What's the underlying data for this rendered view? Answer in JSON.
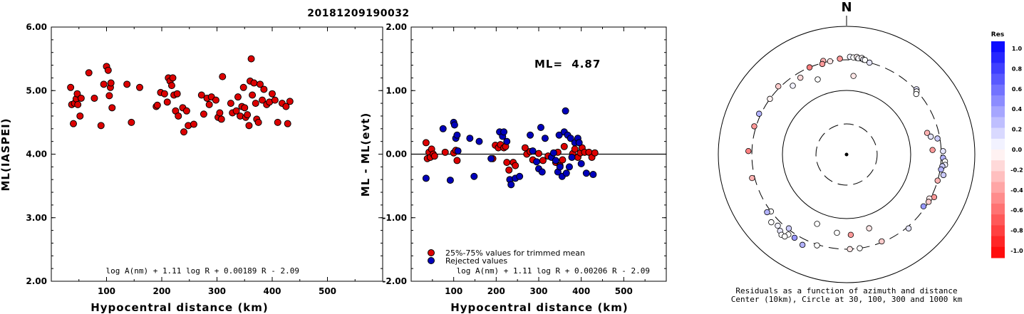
{
  "title": "20181209190032",
  "chart_data": [
    {
      "type": "scatter",
      "ylabel": "ML(IASPEI)",
      "xlabel": "Hypocentral distance (km)",
      "xlim": [
        0,
        600
      ],
      "ylim": [
        2.0,
        6.0
      ],
      "xticks": [
        "100",
        "200",
        "300",
        "400",
        "500"
      ],
      "yticks": [
        "2.00",
        "3.00",
        "4.00",
        "5.00",
        "6.00"
      ],
      "formula": "log A(nm) + 1.11 log R + 0.00189 R - 2.09",
      "point_color": "#dd0000",
      "points": [
        [
          35,
          5.05
        ],
        [
          37,
          4.78
        ],
        [
          40,
          4.48
        ],
        [
          42,
          4.8
        ],
        [
          45,
          4.87
        ],
        [
          47,
          4.95
        ],
        [
          48,
          4.78
        ],
        [
          52,
          4.6
        ],
        [
          54,
          4.88
        ],
        [
          68,
          5.28
        ],
        [
          78,
          4.88
        ],
        [
          90,
          4.45
        ],
        [
          95,
          5.1
        ],
        [
          100,
          5.38
        ],
        [
          103,
          5.32
        ],
        [
          105,
          4.92
        ],
        [
          107,
          5.05
        ],
        [
          108,
          5.12
        ],
        [
          110,
          4.73
        ],
        [
          137,
          5.1
        ],
        [
          145,
          4.5
        ],
        [
          160,
          5.05
        ],
        [
          190,
          4.75
        ],
        [
          192,
          4.77
        ],
        [
          198,
          4.97
        ],
        [
          205,
          4.95
        ],
        [
          210,
          4.82
        ],
        [
          212,
          5.2
        ],
        [
          215,
          5.15
        ],
        [
          218,
          5.08
        ],
        [
          220,
          5.2
        ],
        [
          222,
          4.93
        ],
        [
          225,
          4.68
        ],
        [
          228,
          4.95
        ],
        [
          230,
          4.6
        ],
        [
          238,
          4.73
        ],
        [
          240,
          4.35
        ],
        [
          245,
          4.68
        ],
        [
          248,
          4.45
        ],
        [
          258,
          4.47
        ],
        [
          272,
          4.93
        ],
        [
          276,
          4.63
        ],
        [
          282,
          4.88
        ],
        [
          286,
          4.78
        ],
        [
          290,
          4.9
        ],
        [
          298,
          4.85
        ],
        [
          302,
          4.58
        ],
        [
          305,
          4.65
        ],
        [
          308,
          4.55
        ],
        [
          310,
          5.22
        ],
        [
          325,
          4.8
        ],
        [
          328,
          4.65
        ],
        [
          335,
          4.68
        ],
        [
          338,
          4.9
        ],
        [
          342,
          4.6
        ],
        [
          345,
          4.75
        ],
        [
          348,
          5.05
        ],
        [
          350,
          4.73
        ],
        [
          352,
          4.58
        ],
        [
          355,
          4.62
        ],
        [
          358,
          4.45
        ],
        [
          360,
          5.15
        ],
        [
          362,
          5.5
        ],
        [
          364,
          4.93
        ],
        [
          367,
          5.12
        ],
        [
          370,
          4.8
        ],
        [
          372,
          4.55
        ],
        [
          375,
          4.5
        ],
        [
          378,
          5.1
        ],
        [
          382,
          4.85
        ],
        [
          385,
          5.02
        ],
        [
          390,
          4.78
        ],
        [
          395,
          4.82
        ],
        [
          400,
          4.95
        ],
        [
          405,
          4.85
        ],
        [
          410,
          4.5
        ],
        [
          418,
          4.8
        ],
        [
          425,
          4.75
        ],
        [
          428,
          4.48
        ],
        [
          432,
          4.83
        ]
      ]
    },
    {
      "type": "scatter",
      "ylabel": "ML - ML(evt)",
      "xlabel": "Hypocentral distance (km)",
      "xlim": [
        0,
        600
      ],
      "ylim": [
        -2.0,
        2.0
      ],
      "xticks": [
        "100",
        "200",
        "300",
        "400",
        "500"
      ],
      "yticks": [
        "-2.00",
        "-1.00",
        "0.00",
        "1.00",
        "2.00"
      ],
      "formula": "log A(nm) + 1.11 log R + 0.00206 R - 2.09",
      "ml_label": "ML=",
      "ml_value": "4.87",
      "legend": [
        {
          "label": "25%-75% values for trimmed mean",
          "color": "#dd0000"
        },
        {
          "label": "Rejected values",
          "color": "#0000bb"
        }
      ],
      "series": [
        {
          "name": "25%-75% values for trimmed mean",
          "color": "#dd0000",
          "points": [
            [
              35,
              0.18
            ],
            [
              38,
              -0.07
            ],
            [
              42,
              0.03
            ],
            [
              45,
              -0.05
            ],
            [
              48,
              0.08
            ],
            [
              52,
              0.0
            ],
            [
              55,
              -0.03
            ],
            [
              80,
              0.03
            ],
            [
              100,
              0.02
            ],
            [
              105,
              0.06
            ],
            [
              108,
              -0.1
            ],
            [
              192,
              -0.07
            ],
            [
              198,
              0.14
            ],
            [
              205,
              0.1
            ],
            [
              210,
              0.15
            ],
            [
              218,
              0.1
            ],
            [
              222,
              0.12
            ],
            [
              225,
              -0.13
            ],
            [
              230,
              -0.25
            ],
            [
              240,
              -0.13
            ],
            [
              245,
              -0.18
            ],
            [
              268,
              0.1
            ],
            [
              272,
              0.0
            ],
            [
              280,
              0.04
            ],
            [
              286,
              -0.09
            ],
            [
              300,
              0.01
            ],
            [
              310,
              -0.1
            ],
            [
              322,
              -0.03
            ],
            [
              340,
              -0.13
            ],
            [
              345,
              0.03
            ],
            [
              350,
              -0.18
            ],
            [
              356,
              -0.09
            ],
            [
              360,
              0.12
            ],
            [
              380,
              0.01
            ],
            [
              385,
              0.08
            ],
            [
              392,
              -0.05
            ],
            [
              398,
              0.02
            ],
            [
              402,
              0.1
            ],
            [
              408,
              0.03
            ],
            [
              418,
              0.03
            ],
            [
              425,
              -0.05
            ],
            [
              432,
              0.02
            ]
          ]
        },
        {
          "name": "Rejected values",
          "color": "#0000bb",
          "points": [
            [
              35,
              -0.38
            ],
            [
              75,
              0.4
            ],
            [
              92,
              -0.41
            ],
            [
              100,
              0.5
            ],
            [
              102,
              0.46
            ],
            [
              105,
              0.25
            ],
            [
              108,
              0.3
            ],
            [
              110,
              0.05
            ],
            [
              138,
              0.25
            ],
            [
              148,
              -0.35
            ],
            [
              160,
              0.2
            ],
            [
              188,
              -0.07
            ],
            [
              208,
              0.35
            ],
            [
              215,
              0.28
            ],
            [
              218,
              0.35
            ],
            [
              225,
              0.2
            ],
            [
              232,
              -0.4
            ],
            [
              235,
              -0.48
            ],
            [
              245,
              -0.38
            ],
            [
              255,
              -0.35
            ],
            [
              280,
              0.3
            ],
            [
              286,
              0.05
            ],
            [
              295,
              -0.12
            ],
            [
              300,
              -0.23
            ],
            [
              305,
              0.42
            ],
            [
              308,
              -0.28
            ],
            [
              315,
              0.25
            ],
            [
              330,
              -0.05
            ],
            [
              335,
              0.02
            ],
            [
              340,
              -0.1
            ],
            [
              345,
              -0.28
            ],
            [
              348,
              0.3
            ],
            [
              350,
              -0.2
            ],
            [
              355,
              -0.35
            ],
            [
              360,
              0.35
            ],
            [
              363,
              0.68
            ],
            [
              365,
              -0.3
            ],
            [
              368,
              0.3
            ],
            [
              372,
              -0.2
            ],
            [
              375,
              0.25
            ],
            [
              378,
              -0.05
            ],
            [
              385,
              0.18
            ],
            [
              392,
              0.25
            ],
            [
              395,
              0.18
            ],
            [
              400,
              -0.15
            ],
            [
              412,
              -0.3
            ],
            [
              428,
              -0.32
            ]
          ]
        }
      ]
    },
    {
      "type": "scatter",
      "subtype": "polar",
      "north_label": "N",
      "caption_line1": "Residuals as a function of azimuth and distance",
      "caption_line2": "Center (10km), Circle at 30, 100, 300 and 1000 km",
      "rings_km": [
        30,
        100,
        300,
        1000
      ],
      "colorbar": {
        "title": "Res",
        "ticks": [
          "1.0",
          "0.8",
          "0.6",
          "0.4",
          "0.2",
          "0.0",
          "-0.2",
          "-0.4",
          "-0.6",
          "-0.8",
          "-1.0"
        ],
        "positive_color": "#0000ff",
        "negative_color": "#ff0000"
      },
      "points_az_dist_res": [
        [
          2,
          335,
          0.05
        ],
        [
          4,
          330,
          0.0
        ],
        [
          6,
          340,
          -0.05
        ],
        [
          7,
          325,
          0.03
        ],
        [
          9,
          335,
          -0.02
        ],
        [
          10,
          320,
          0.05
        ],
        [
          11,
          318,
          0.0
        ],
        [
          14,
          300,
          0.1
        ],
        [
          356,
          315,
          -0.4
        ],
        [
          350,
          300,
          -0.1
        ],
        [
          346,
          320,
          -0.3
        ],
        [
          345,
          290,
          -0.4
        ],
        [
          337,
          300,
          -0.5
        ],
        [
          329,
          250,
          -0.15
        ],
        [
          322,
          230,
          0.05
        ],
        [
          315,
          320,
          -0.2
        ],
        [
          306,
          300,
          -0.05
        ],
        [
          295,
          320,
          0.3
        ],
        [
          287,
          320,
          -0.4
        ],
        [
          339,
          180,
          0.0
        ],
        [
          5,
          170,
          -0.1
        ],
        [
          47,
          310,
          0.1
        ],
        [
          48,
          295,
          0.0
        ],
        [
          49,
          275,
          0.0
        ],
        [
          75,
          200,
          -0.3
        ],
        [
          78,
          220,
          0.1
        ],
        [
          80,
          275,
          0.2
        ],
        [
          87,
          220,
          -0.4
        ],
        [
          88,
          320,
          0.1
        ],
        [
          92,
          320,
          0.3
        ],
        [
          94,
          345,
          0.0
        ],
        [
          96,
          350,
          0.05
        ],
        [
          97,
          320,
          0.2
        ],
        [
          99,
          310,
          0.3
        ],
        [
          102,
          350,
          0.2
        ],
        [
          106,
          300,
          -0.3
        ],
        [
          116,
          330,
          -0.4
        ],
        [
          118,
          290,
          -0.1
        ],
        [
          120,
          300,
          -0.2
        ],
        [
          124,
          280,
          0.4
        ],
        [
          140,
          320,
          0.1
        ],
        [
          158,
          290,
          -0.2
        ],
        [
          163,
          160,
          -0.1
        ],
        [
          172,
          300,
          0.0
        ],
        [
          178,
          300,
          -0.1
        ],
        [
          177,
          180,
          -0.4
        ],
        [
          187,
          170,
          0.0
        ],
        [
          198,
          310,
          0.0
        ],
        [
          206,
          370,
          0.3
        ],
        [
          212,
          340,
          0.4
        ],
        [
          216,
          350,
          0.0
        ],
        [
          218,
          290,
          0.2
        ],
        [
          203,
          150,
          0.0
        ],
        [
          221,
          380,
          0.1
        ],
        [
          224,
          350,
          0.05
        ],
        [
          256,
          330,
          -0.3
        ],
        [
          272,
          340,
          -0.5
        ],
        [
          233,
          300,
          0.0
        ],
        [
          234,
          340,
          0.3
        ],
        [
          228,
          380,
          0.0
        ],
        [
          219,
          410,
          0.0
        ],
        [
          217,
          400,
          0.0
        ]
      ]
    }
  ]
}
